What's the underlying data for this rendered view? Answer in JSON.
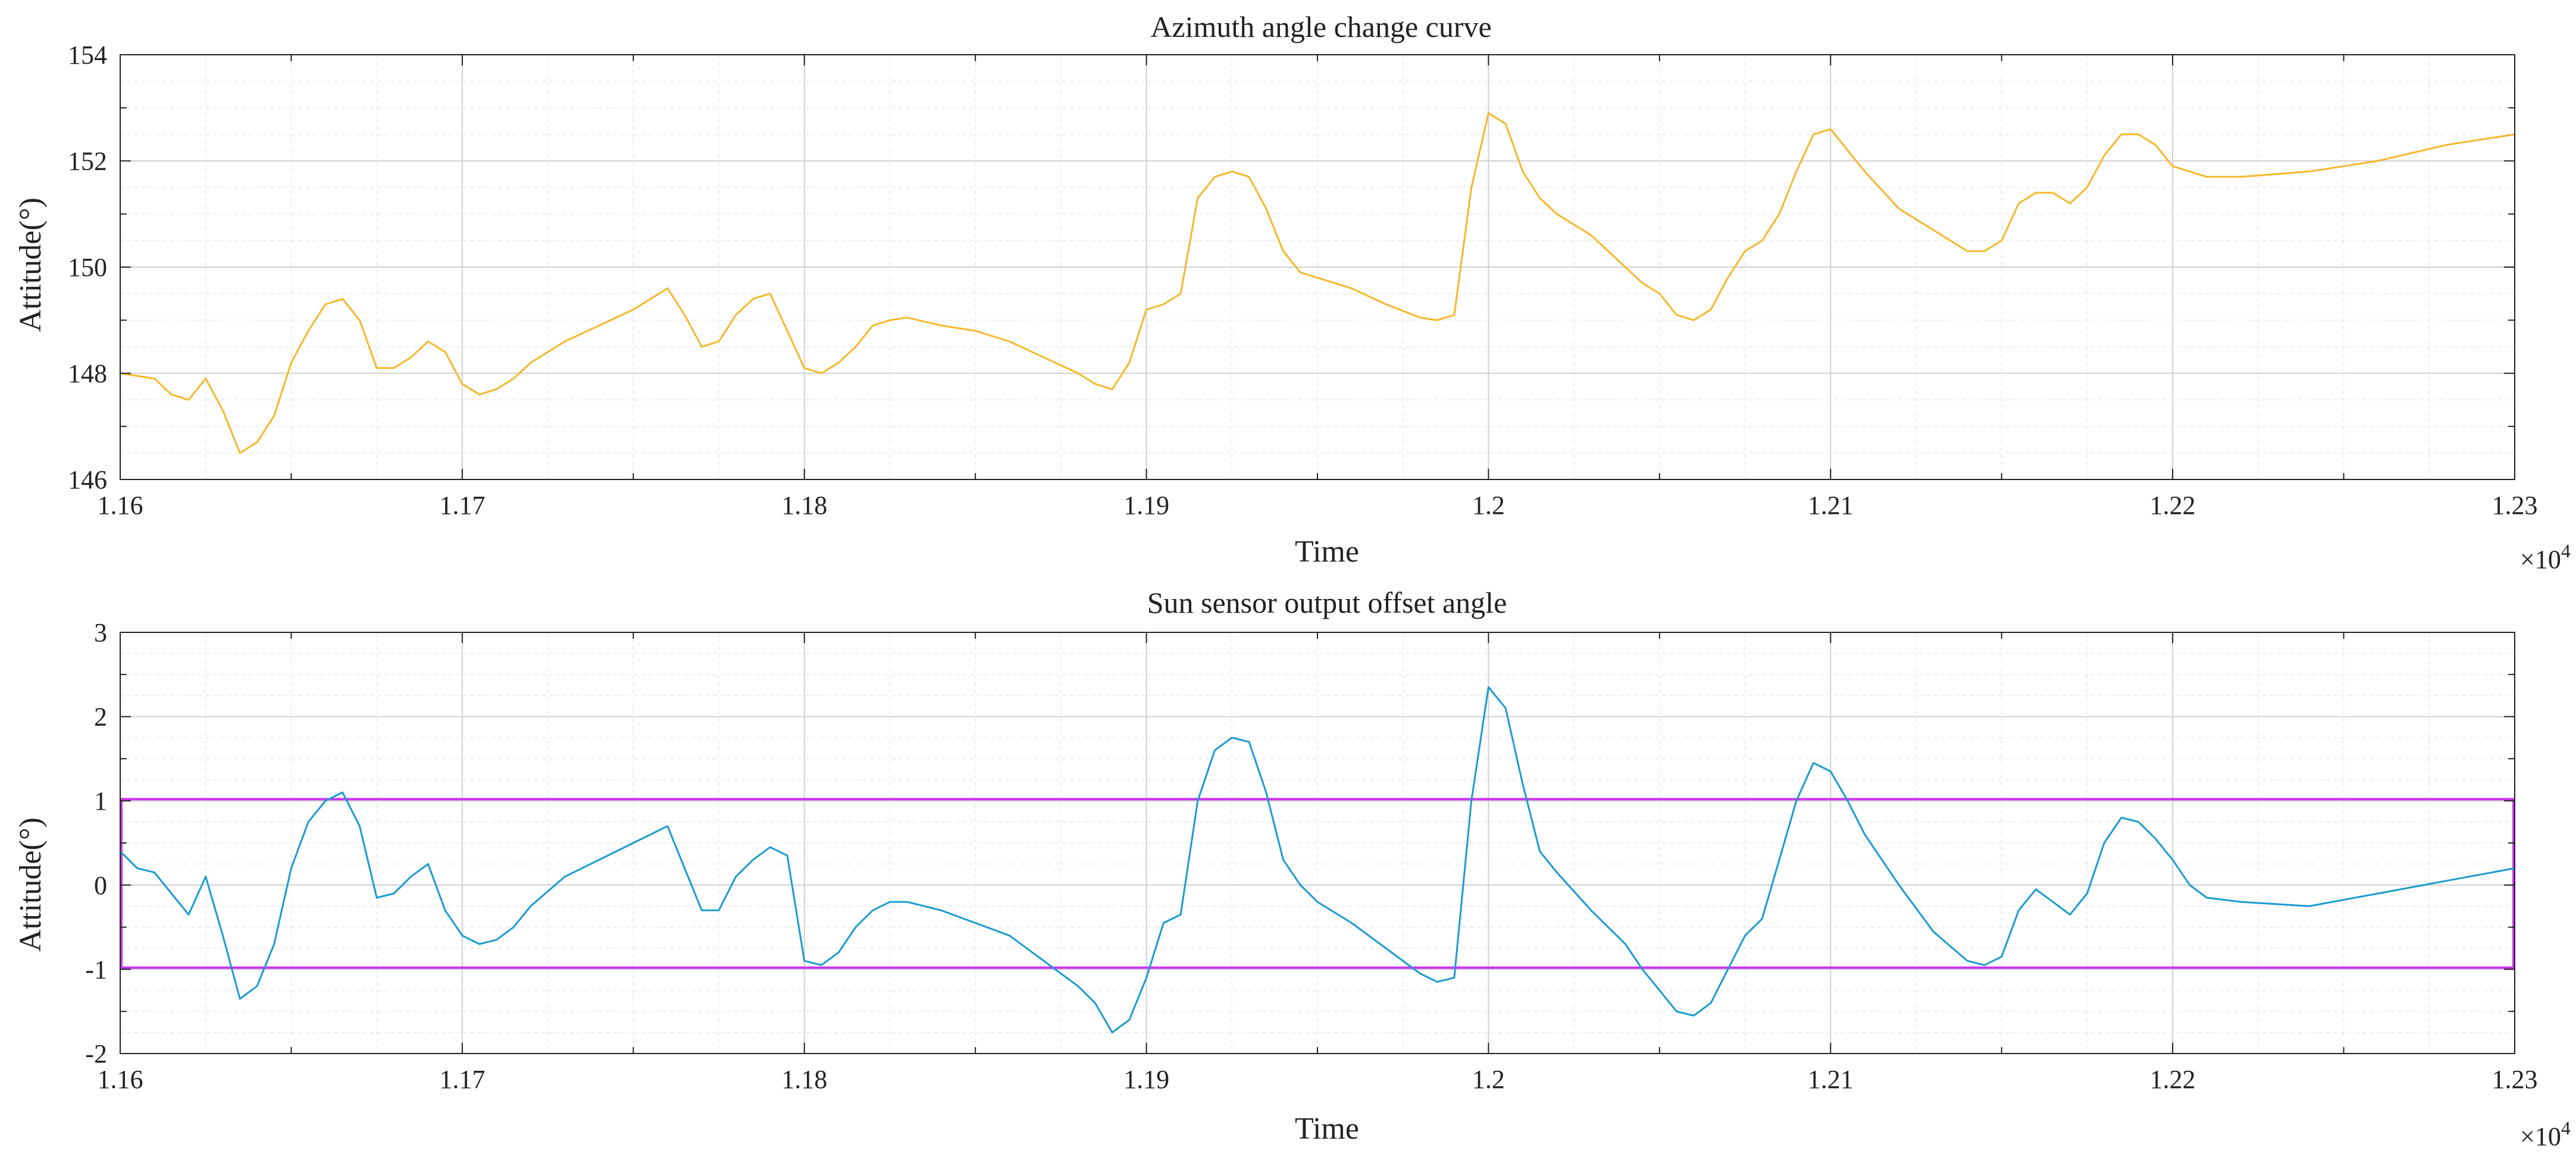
{
  "chart_data": [
    {
      "type": "line",
      "title": "Azimuth angle change curve",
      "xlabel": "Time",
      "ylabel": "Attitude(°)",
      "x_exponent_label": "×10",
      "x_exponent": "4",
      "xlim": [
        1.16,
        1.23
      ],
      "ylim": [
        146,
        154
      ],
      "x_ticks": [
        1.16,
        1.17,
        1.18,
        1.19,
        1.2,
        1.21,
        1.22,
        1.23
      ],
      "x_tick_labels": [
        "1.16",
        "1.17",
        "1.18",
        "1.19",
        "1.2",
        "1.21",
        "1.22",
        "1.23"
      ],
      "y_ticks": [
        146,
        148,
        150,
        152,
        154
      ],
      "y_tick_labels": [
        "146",
        "148",
        "150",
        "152",
        "154"
      ],
      "grid": true,
      "series": [
        {
          "color": "#f5b82a",
          "x": [
            1.16,
            1.161,
            1.1615,
            1.162,
            1.1625,
            1.163,
            1.1635,
            1.164,
            1.1645,
            1.165,
            1.1655,
            1.166,
            1.1665,
            1.167,
            1.1675,
            1.168,
            1.1685,
            1.169,
            1.1695,
            1.17,
            1.1705,
            1.171,
            1.1715,
            1.172,
            1.173,
            1.174,
            1.175,
            1.176,
            1.1765,
            1.177,
            1.1775,
            1.178,
            1.1785,
            1.179,
            1.1795,
            1.18,
            1.1805,
            1.181,
            1.1815,
            1.182,
            1.1825,
            1.183,
            1.184,
            1.185,
            1.186,
            1.187,
            1.188,
            1.1885,
            1.189,
            1.1895,
            1.19,
            1.1905,
            1.191,
            1.1915,
            1.192,
            1.1925,
            1.193,
            1.1935,
            1.194,
            1.1945,
            1.195,
            1.196,
            1.197,
            1.198,
            1.1985,
            1.199,
            1.1995,
            1.2,
            1.2005,
            1.201,
            1.2015,
            1.202,
            1.203,
            1.204,
            1.2045,
            1.205,
            1.2055,
            1.206,
            1.2065,
            1.207,
            1.2075,
            1.208,
            1.2085,
            1.209,
            1.2095,
            1.21,
            1.2105,
            1.211,
            1.212,
            1.213,
            1.214,
            1.2145,
            1.215,
            1.2155,
            1.216,
            1.2165,
            1.217,
            1.2175,
            1.218,
            1.2185,
            1.219,
            1.2195,
            1.22,
            1.2205,
            1.221,
            1.222,
            1.224,
            1.226,
            1.228,
            1.23
          ],
          "y": [
            148.0,
            147.9,
            147.6,
            147.5,
            147.9,
            147.3,
            146.5,
            146.7,
            147.2,
            148.2,
            148.8,
            149.3,
            149.4,
            149.0,
            148.1,
            148.1,
            148.3,
            148.6,
            148.4,
            147.8,
            147.6,
            147.7,
            147.9,
            148.2,
            148.6,
            148.9,
            149.2,
            149.6,
            149.1,
            148.5,
            148.6,
            149.1,
            149.4,
            149.5,
            148.8,
            148.1,
            148.0,
            148.2,
            148.5,
            148.9,
            149.0,
            149.05,
            148.9,
            148.8,
            148.6,
            148.3,
            148.0,
            147.8,
            147.7,
            148.2,
            149.2,
            149.3,
            149.5,
            151.3,
            151.7,
            151.8,
            151.7,
            151.1,
            150.3,
            149.9,
            149.8,
            149.6,
            149.3,
            149.05,
            149.0,
            149.1,
            151.5,
            152.9,
            152.7,
            151.8,
            151.3,
            151.0,
            150.6,
            150.0,
            149.7,
            149.5,
            149.1,
            149.0,
            149.2,
            149.8,
            150.3,
            150.5,
            151.0,
            151.8,
            152.5,
            152.6,
            152.2,
            151.8,
            151.1,
            150.7,
            150.3,
            150.3,
            150.5,
            151.2,
            151.4,
            151.4,
            151.2,
            151.5,
            152.1,
            152.5,
            152.5,
            152.3,
            151.9,
            151.8,
            151.7,
            151.7,
            151.8,
            152.0,
            152.3,
            152.5
          ]
        }
      ]
    },
    {
      "type": "line",
      "title": "Sun sensor output offset angle",
      "xlabel": "Time",
      "ylabel": "Attitude(°)",
      "x_exponent_label": "×10",
      "x_exponent": "4",
      "xlim": [
        1.16,
        1.23
      ],
      "ylim": [
        -2,
        3
      ],
      "x_ticks": [
        1.16,
        1.17,
        1.18,
        1.19,
        1.2,
        1.21,
        1.22,
        1.23
      ],
      "x_tick_labels": [
        "1.16",
        "1.17",
        "1.18",
        "1.19",
        "1.2",
        "1.21",
        "1.22",
        "1.23"
      ],
      "y_ticks": [
        -2,
        -1,
        0,
        1,
        2,
        3
      ],
      "y_tick_labels": [
        "-2",
        "-1",
        "0",
        "1",
        "2",
        "3"
      ],
      "grid": true,
      "bounds": {
        "upper": 1.02,
        "lower": -0.98,
        "color": "#cc33ee"
      },
      "series": [
        {
          "color": "#1a9bd0",
          "x": [
            1.16,
            1.1605,
            1.161,
            1.1615,
            1.162,
            1.1625,
            1.163,
            1.1635,
            1.164,
            1.1645,
            1.165,
            1.1655,
            1.166,
            1.1665,
            1.167,
            1.1675,
            1.168,
            1.1685,
            1.169,
            1.1695,
            1.17,
            1.1705,
            1.171,
            1.1715,
            1.172,
            1.173,
            1.174,
            1.175,
            1.176,
            1.1765,
            1.177,
            1.1775,
            1.178,
            1.1785,
            1.179,
            1.1795,
            1.18,
            1.1805,
            1.181,
            1.1815,
            1.182,
            1.1825,
            1.183,
            1.184,
            1.185,
            1.186,
            1.187,
            1.188,
            1.1885,
            1.189,
            1.1895,
            1.19,
            1.1905,
            1.191,
            1.1915,
            1.192,
            1.1925,
            1.193,
            1.1935,
            1.194,
            1.1945,
            1.195,
            1.196,
            1.197,
            1.198,
            1.1985,
            1.199,
            1.1995,
            1.2,
            1.2005,
            1.201,
            1.2015,
            1.202,
            1.203,
            1.204,
            1.2045,
            1.205,
            1.2055,
            1.206,
            1.2065,
            1.207,
            1.2075,
            1.208,
            1.2085,
            1.209,
            1.2095,
            1.21,
            1.2105,
            1.211,
            1.212,
            1.213,
            1.214,
            1.2145,
            1.215,
            1.2155,
            1.216,
            1.2165,
            1.217,
            1.2175,
            1.218,
            1.2185,
            1.219,
            1.2195,
            1.22,
            1.2205,
            1.221,
            1.222,
            1.224,
            1.226,
            1.228,
            1.23
          ],
          "y": [
            0.4,
            0.2,
            0.15,
            -0.1,
            -0.35,
            0.1,
            -0.6,
            -1.35,
            -1.2,
            -0.7,
            0.2,
            0.75,
            1.0,
            1.1,
            0.7,
            -0.15,
            -0.1,
            0.1,
            0.25,
            -0.3,
            -0.6,
            -0.7,
            -0.65,
            -0.5,
            -0.25,
            0.1,
            0.3,
            0.5,
            0.7,
            0.2,
            -0.3,
            -0.3,
            0.1,
            0.3,
            0.45,
            0.35,
            -0.9,
            -0.95,
            -0.8,
            -0.5,
            -0.3,
            -0.2,
            -0.2,
            -0.3,
            -0.45,
            -0.6,
            -0.9,
            -1.2,
            -1.4,
            -1.75,
            -1.6,
            -1.1,
            -0.45,
            -0.35,
            1.0,
            1.6,
            1.75,
            1.7,
            1.1,
            0.3,
            0.0,
            -0.2,
            -0.45,
            -0.75,
            -1.05,
            -1.15,
            -1.1,
            1.0,
            2.35,
            2.1,
            1.2,
            0.4,
            0.15,
            -0.3,
            -0.7,
            -1.0,
            -1.25,
            -1.5,
            -1.55,
            -1.4,
            -1.0,
            -0.6,
            -0.4,
            0.3,
            1.0,
            1.45,
            1.35,
            1.0,
            0.6,
            0.0,
            -0.55,
            -0.9,
            -0.95,
            -0.85,
            -0.3,
            -0.05,
            -0.2,
            -0.35,
            -0.1,
            0.5,
            0.8,
            0.75,
            0.55,
            0.3,
            0.0,
            -0.15,
            -0.2,
            -0.25,
            -0.1,
            0.05,
            0.2
          ]
        }
      ]
    }
  ]
}
